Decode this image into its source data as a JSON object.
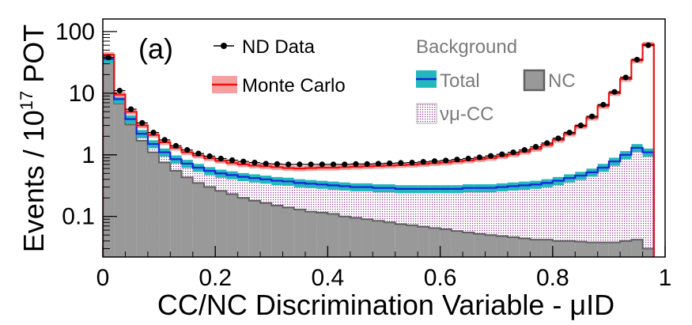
{
  "chart_data": {
    "type": "histogram",
    "panel_label": "(a)",
    "xlabel": "CC/NC Discrimination Variable - μID",
    "ylabel_prefix": "Events / 10",
    "ylabel_exponent": "17",
    "ylabel_suffix": " POT",
    "x_range": [
      0,
      1
    ],
    "y_range": [
      0.022,
      160
    ],
    "y_scale": "log",
    "x_ticks": [
      0,
      0.2,
      0.4,
      0.6,
      0.8,
      1
    ],
    "x_tick_labels": [
      "0",
      "0.2",
      "0.4",
      "0.6",
      "0.8",
      "1"
    ],
    "y_ticks": [
      0.1,
      1,
      10,
      100
    ],
    "y_tick_labels": [
      "0.1",
      "1",
      "10",
      "100"
    ],
    "legend": {
      "data": "ND Data",
      "mc": "Monte Carlo",
      "background_title": "Background",
      "total": "Total",
      "nc": "NC",
      "numu_cc": "νμ-CC"
    },
    "colors": {
      "data": "#000000",
      "mc_line": "#ee1111",
      "mc_band": "#f5a0a0",
      "total_line": "#1a22dd",
      "total_band": "#22b8bd",
      "nc_fill": "#999999",
      "nc_line": "#606060",
      "numu_cc_fill": "#8a2b8a"
    },
    "bin_edges_note": "50 bins, width 0.02, from 0 to 1 (last bin stops at 0.98)",
    "bin_centers": [
      0.01,
      0.03,
      0.05,
      0.07,
      0.09,
      0.11,
      0.13,
      0.15,
      0.17,
      0.19,
      0.21,
      0.23,
      0.25,
      0.27,
      0.29,
      0.31,
      0.33,
      0.35,
      0.37,
      0.39,
      0.41,
      0.43,
      0.45,
      0.47,
      0.49,
      0.51,
      0.53,
      0.55,
      0.57,
      0.59,
      0.61,
      0.63,
      0.65,
      0.67,
      0.69,
      0.71,
      0.73,
      0.75,
      0.77,
      0.79,
      0.81,
      0.83,
      0.85,
      0.87,
      0.89,
      0.91,
      0.93,
      0.95,
      0.97
    ],
    "series": [
      {
        "name": "ND Data",
        "style": "points",
        "values": [
          38,
          11,
          5.5,
          3.3,
          2.3,
          1.75,
          1.4,
          1.2,
          1.05,
          0.95,
          0.87,
          0.82,
          0.78,
          0.75,
          0.72,
          0.71,
          0.7,
          0.7,
          0.7,
          0.7,
          0.7,
          0.7,
          0.71,
          0.71,
          0.72,
          0.73,
          0.74,
          0.75,
          0.77,
          0.79,
          0.81,
          0.84,
          0.87,
          0.91,
          0.96,
          1.02,
          1.1,
          1.2,
          1.35,
          1.55,
          1.85,
          2.3,
          3.0,
          4.2,
          6.5,
          10.5,
          18,
          35,
          60
        ]
      },
      {
        "name": "Monte Carlo",
        "style": "step-line-with-band",
        "values": [
          42,
          9.5,
          5.0,
          3.0,
          2.1,
          1.6,
          1.3,
          1.1,
          0.97,
          0.88,
          0.8,
          0.74,
          0.7,
          0.67,
          0.65,
          0.63,
          0.61,
          0.6,
          0.61,
          0.62,
          0.62,
          0.63,
          0.64,
          0.65,
          0.66,
          0.67,
          0.68,
          0.69,
          0.71,
          0.73,
          0.75,
          0.78,
          0.81,
          0.85,
          0.89,
          0.95,
          1.02,
          1.12,
          1.25,
          1.45,
          1.75,
          2.2,
          2.9,
          4.0,
          6.2,
          10,
          17,
          34,
          62
        ],
        "band_relative_error": 0.1
      },
      {
        "name": "Total",
        "style": "step-line-with-band",
        "values": [
          36,
          8.0,
          3.8,
          2.2,
          1.5,
          1.1,
          0.85,
          0.72,
          0.62,
          0.55,
          0.5,
          0.47,
          0.44,
          0.42,
          0.4,
          0.38,
          0.37,
          0.35,
          0.34,
          0.33,
          0.32,
          0.31,
          0.3,
          0.3,
          0.29,
          0.29,
          0.28,
          0.28,
          0.28,
          0.28,
          0.28,
          0.28,
          0.29,
          0.29,
          0.29,
          0.3,
          0.31,
          0.32,
          0.33,
          0.35,
          0.38,
          0.42,
          0.46,
          0.52,
          0.62,
          0.78,
          1.0,
          1.3,
          1.1
        ],
        "band_relative_error": 0.15
      },
      {
        "name": "νμ-CC",
        "style": "stacked-fill",
        "values": [
          36,
          8.0,
          3.8,
          2.2,
          1.5,
          1.1,
          0.85,
          0.72,
          0.62,
          0.55,
          0.5,
          0.47,
          0.44,
          0.42,
          0.4,
          0.38,
          0.37,
          0.35,
          0.34,
          0.33,
          0.32,
          0.31,
          0.3,
          0.3,
          0.29,
          0.29,
          0.28,
          0.28,
          0.28,
          0.28,
          0.28,
          0.28,
          0.29,
          0.29,
          0.29,
          0.3,
          0.31,
          0.32,
          0.33,
          0.35,
          0.38,
          0.42,
          0.46,
          0.52,
          0.62,
          0.78,
          1.0,
          1.3,
          1.1
        ]
      },
      {
        "name": "NC",
        "style": "filled-step",
        "values": [
          33,
          6.8,
          3.1,
          1.7,
          1.1,
          0.75,
          0.55,
          0.43,
          0.35,
          0.3,
          0.26,
          0.23,
          0.2,
          0.18,
          0.165,
          0.15,
          0.14,
          0.13,
          0.12,
          0.115,
          0.11,
          0.1,
          0.095,
          0.09,
          0.085,
          0.08,
          0.075,
          0.072,
          0.068,
          0.065,
          0.062,
          0.058,
          0.055,
          0.052,
          0.05,
          0.048,
          0.046,
          0.044,
          0.042,
          0.042,
          0.04,
          0.04,
          0.039,
          0.038,
          0.038,
          0.038,
          0.04,
          0.042,
          0.03
        ]
      }
    ]
  }
}
